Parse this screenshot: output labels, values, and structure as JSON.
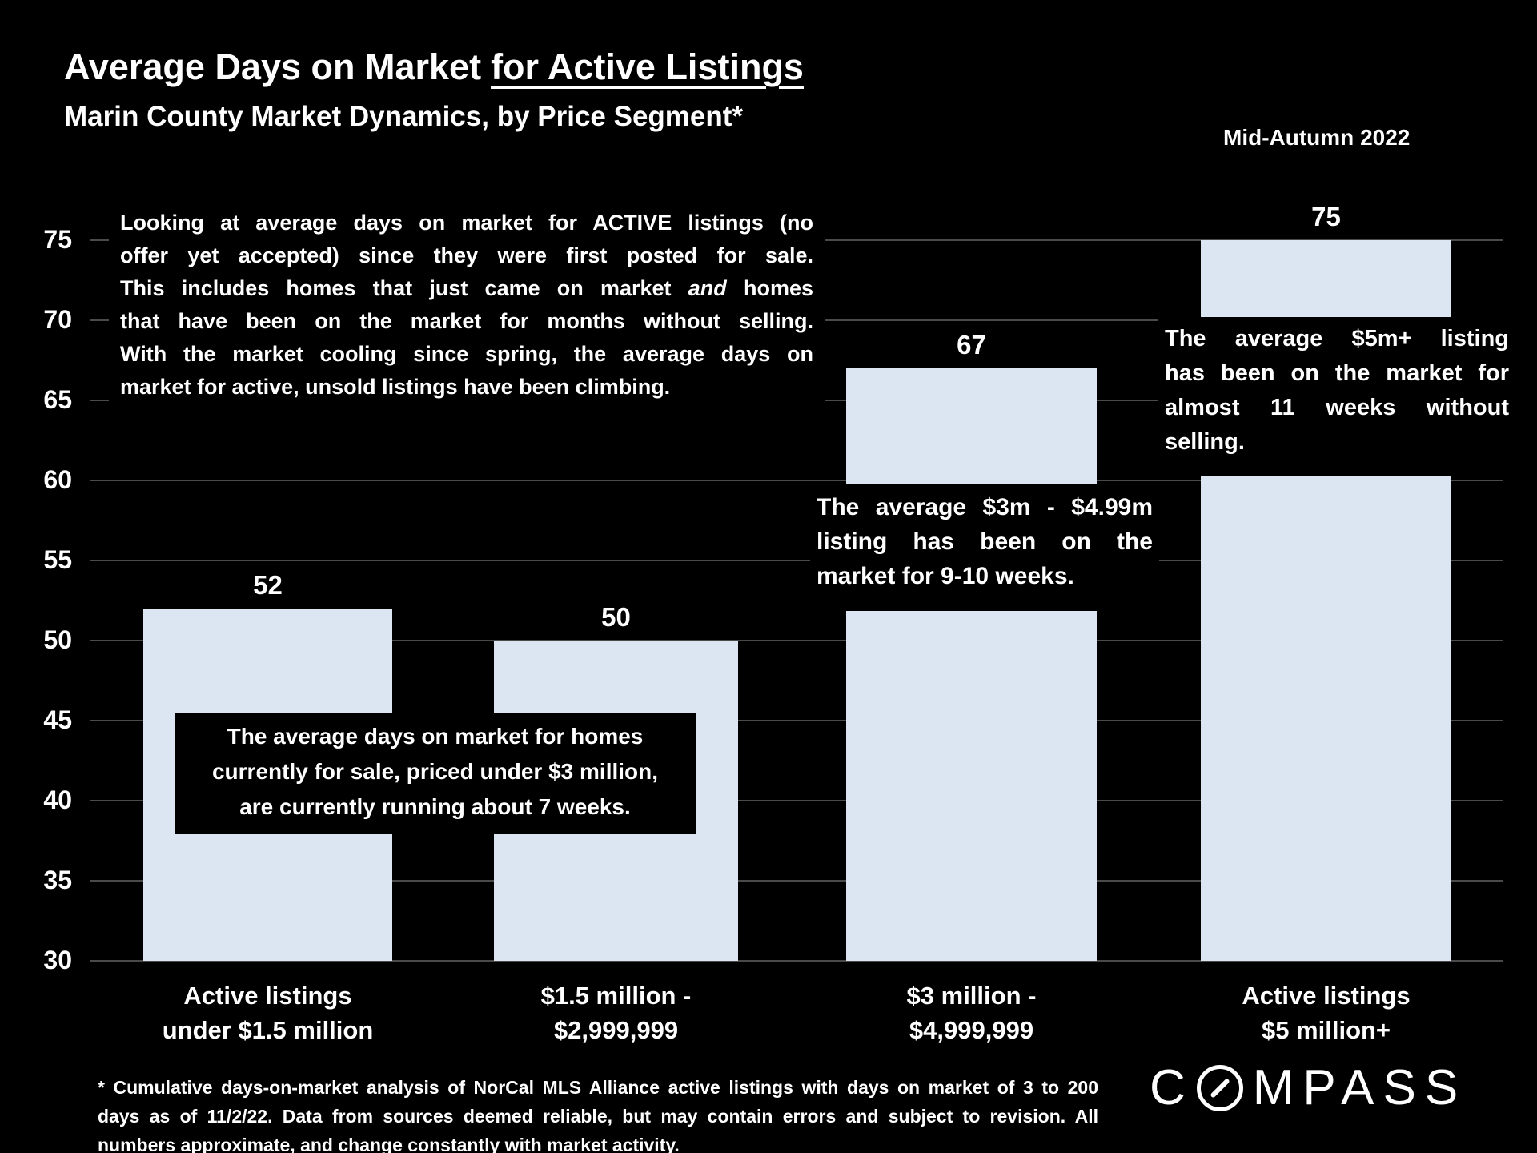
{
  "header": {
    "title_main": "Average Days on Market",
    "title_underline": "for Active Listings",
    "subtitle": "Marin County Market Dynamics, by Price Segment*",
    "edition": "Mid-Autumn 2022"
  },
  "intro_lines": [
    "Looking at average days on market for ACTIVE listings (no",
    "offer yet accepted) since they were first posted for sale.",
    "This includes homes that just came on market <i>and</i> homes",
    "that have been on the market for months without selling.",
    "With the market cooling since spring, the average days on",
    "market for active, unsold listings have been climbing."
  ],
  "chart_data": {
    "type": "bar",
    "title": "Average Days on Market for Active Listings",
    "categories": [
      "Active listings under $1.5 million",
      "$1.5 million - $2,999,999",
      "$3 million - $4,999,999",
      "Active listings $5 million+"
    ],
    "categories_display": [
      [
        "Active listings",
        "under $1.5 million"
      ],
      [
        "$1.5 million -",
        "$2,999,999"
      ],
      [
        "$3 million -",
        "$4,999,999"
      ],
      [
        "Active listings",
        "$5 million+"
      ]
    ],
    "values": [
      52,
      50,
      67,
      75
    ],
    "yticks": [
      30,
      35,
      40,
      45,
      50,
      55,
      60,
      65,
      70,
      75
    ],
    "ylim": [
      30,
      75
    ],
    "grid": true,
    "legend_position": "none",
    "bar_color": "#dce6f2",
    "grid_color": "#4a4a4a",
    "background_color": "#000000",
    "text_color": "#ffffff"
  },
  "annotations": {
    "under_3m_lines": [
      "The average days on market for homes",
      "currently for sale, priced under $3 million,",
      "are currently running about 7 weeks."
    ],
    "m3_to_5m_lines": [
      "The average $3m - $4.99m",
      "listing has been on the",
      "market for 9-10 weeks."
    ],
    "m5_plus_lines": [
      "The average $5m+ listing",
      "has been on the market for",
      "almost 11 weeks without",
      "selling."
    ]
  },
  "footnote_lines": [
    "* Cumulative days-on-market analysis of NorCal MLS Alliance active listings with days on market of 3 to 200",
    "days as of 11/2/22. Data from sources deemed reliable, but may contain errors and subject to revision. All",
    "numbers approximate, and change constantly with market activity."
  ],
  "logo": {
    "prefix": "C",
    "suffix": "MPASS",
    "name": "COMPASS"
  }
}
